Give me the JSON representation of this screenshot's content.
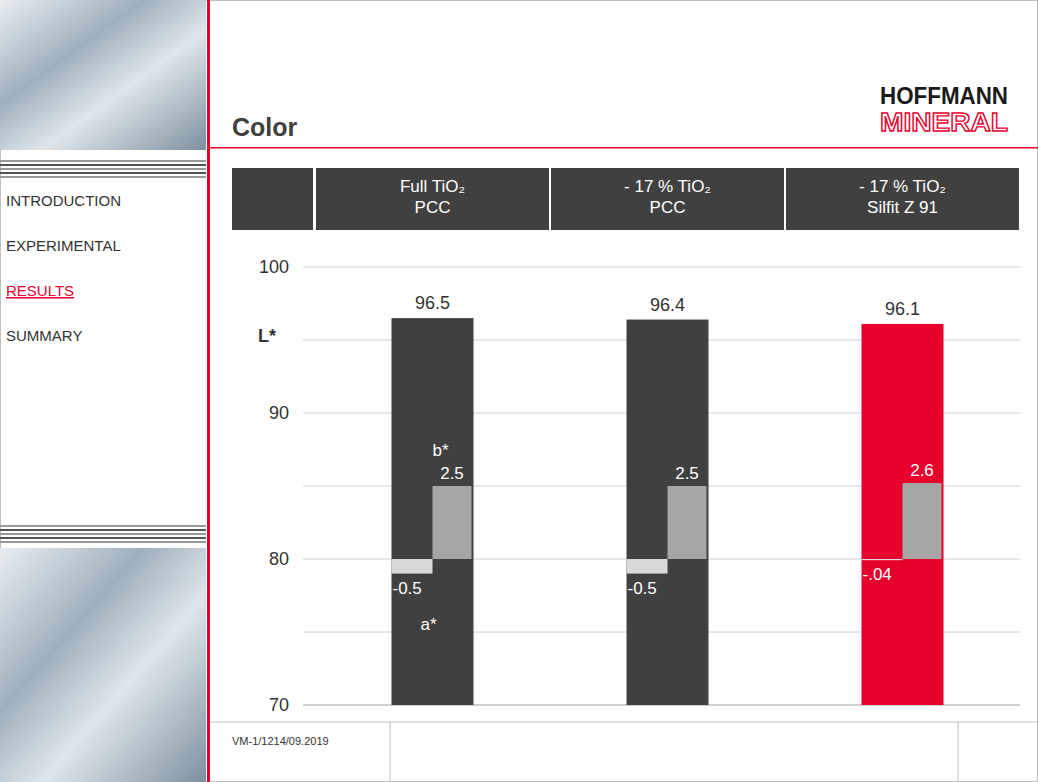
{
  "page": {
    "nav": {
      "items": [
        "INTRODUCTION",
        "EXPERIMENTAL",
        "RESULTS",
        "SUMMARY"
      ],
      "active": 2
    },
    "logo": [
      "HOFFMANN",
      "MINERAL"
    ],
    "footer": "VM-1/1214/09.2019"
  },
  "chart_data": {
    "type": "bar",
    "title": "Color",
    "categories": [
      "Full TiO₂\nPCC",
      "- 17 % TiO₂\nPCC",
      "- 17 % TiO₂\nSilfit Z 91"
    ],
    "series": [
      {
        "name": "L*",
        "values": [
          96.5,
          96.4,
          96.1
        ],
        "colors": [
          "#404040",
          "#404040",
          "#e8002d"
        ]
      },
      {
        "name": "a*",
        "values": [
          -0.5,
          -0.5,
          -0.04
        ],
        "value_labels": [
          "-0.5",
          "-0.5",
          "-.04"
        ],
        "axis": "y2",
        "color": "#d9d9d9"
      },
      {
        "name": "b*",
        "values": [
          2.5,
          2.5,
          2.6
        ],
        "axis": "y2",
        "color": "#a6a6a6"
      }
    ],
    "ylim": [
      70,
      100
    ],
    "yticks": [
      70,
      80,
      90,
      100
    ],
    "y2lim": [
      -5,
      10
    ],
    "y2ticks": [],
    "grid": true,
    "data_labels": true,
    "tick_labels": "y"
  }
}
